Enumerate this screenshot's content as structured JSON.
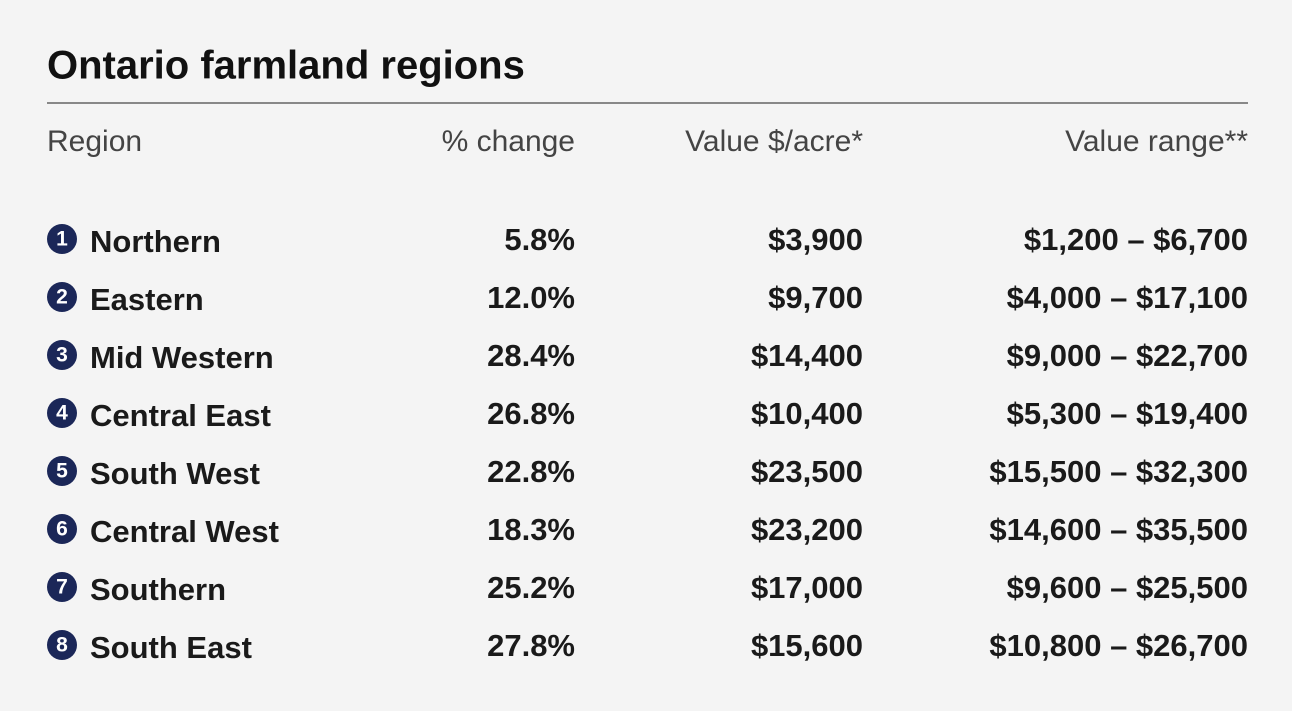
{
  "header": {
    "title": "Ontario farmland regions"
  },
  "table": {
    "columns": [
      "Region",
      "% change",
      "Value $/acre*",
      "Value range**"
    ],
    "rows": [
      [
        "1",
        "Northern",
        "5.8%",
        "$3,900",
        "$1,200 – $6,700"
      ],
      [
        "2",
        "Eastern",
        "12.0%",
        "$9,700",
        "$4,000 – $17,100"
      ],
      [
        "3",
        "Mid Western",
        "28.4%",
        "$14,400",
        "$9,000 – $22,700"
      ],
      [
        "4",
        "Central East",
        "26.8%",
        "$10,400",
        "$5,300 – $19,400"
      ],
      [
        "5",
        "South West",
        "22.8%",
        "$23,500",
        "$15,500 – $32,300"
      ],
      [
        "6",
        "Central West",
        "18.3%",
        "$23,200",
        "$14,600 – $35,500"
      ],
      [
        "7",
        "Southern",
        "25.2%",
        "$17,000",
        "$9,600 – $25,500"
      ],
      [
        "8",
        "South East",
        "27.8%",
        "$15,600",
        "$10,800 – $26,700"
      ]
    ]
  }
}
